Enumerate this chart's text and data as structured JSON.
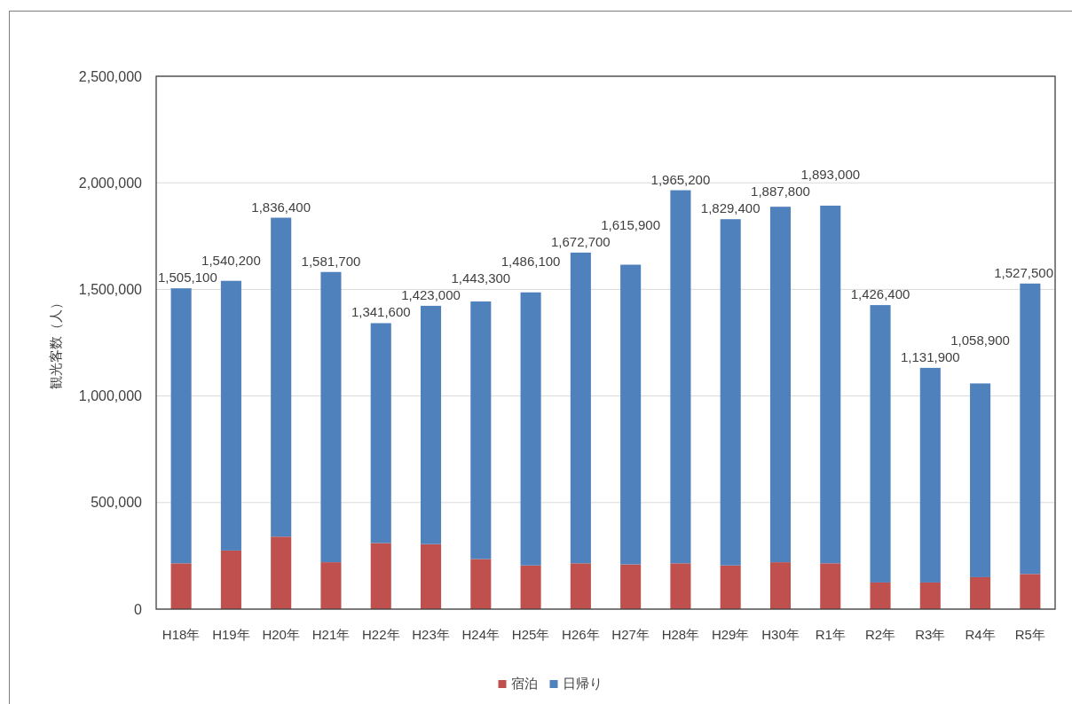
{
  "chart_data": {
    "type": "bar",
    "stacked": true,
    "ylabel": "観光客数（人）",
    "categories": [
      "H18年",
      "H19年",
      "H20年",
      "H21年",
      "H22年",
      "H23年",
      "H24年",
      "H25年",
      "H26年",
      "H27年",
      "H28年",
      "H29年",
      "H30年",
      "R1年",
      "R2年",
      "R3年",
      "R4年",
      "R5年"
    ],
    "series": [
      {
        "name": "宿泊",
        "color": "#c0504d",
        "values": [
          215000,
          275000,
          340000,
          220000,
          310000,
          305000,
          235000,
          205000,
          215000,
          210000,
          215000,
          205000,
          220000,
          215000,
          125000,
          125000,
          150000,
          165000
        ]
      },
      {
        "name": "日帰り",
        "color": "#4f81bd",
        "values": [
          1290100,
          1265200,
          1496400,
          1361700,
          1031600,
          1118000,
          1208300,
          1281100,
          1457700,
          1405900,
          1750200,
          1624400,
          1667800,
          1678000,
          1301400,
          1006900,
          908900,
          1362500
        ]
      }
    ],
    "totals": [
      "1,505,100",
      "1,540,200",
      "1,836,400",
      "1,581,700",
      "1,341,600",
      "1,423,000",
      "1,443,300",
      "1,486,100",
      "1,672,700",
      "1,615,900",
      "1,965,200",
      "1,829,400",
      "1,887,800",
      "1,893,000",
      "1,426,400",
      "1,131,900",
      "1,058,900",
      "1,527,500"
    ],
    "ylim": [
      0,
      2500000
    ],
    "yticks": [
      0,
      {
        "value": 500000,
        "label": "500,000"
      },
      {
        "value": 1000000,
        "label": "1,000,000"
      },
      {
        "value": 1500000,
        "label": "1,500,000"
      },
      {
        "value": 2000000,
        "label": "2,000,000"
      },
      {
        "value": 2500000,
        "label": "2,500,000"
      }
    ],
    "grid": "y",
    "legend": "bottom"
  }
}
